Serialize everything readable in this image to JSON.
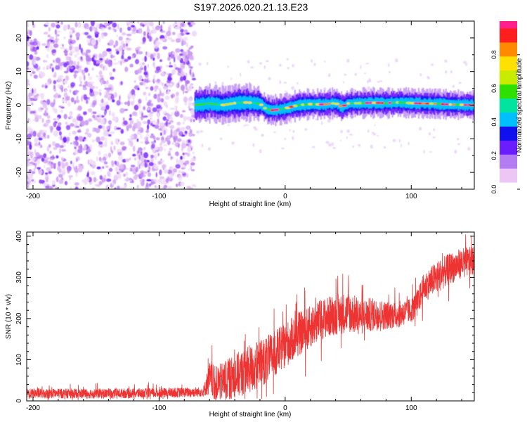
{
  "title": "S197.2026.020.21.13.E23",
  "chart_data": [
    {
      "type": "heatmap",
      "name": "spectrogram",
      "xlabel": "Height of straight line (km)",
      "ylabel": "Frequency (Hz)",
      "xlim": [
        -205,
        150
      ],
      "ylim": [
        -25,
        25
      ],
      "xticks": [
        -200,
        -100,
        0,
        100
      ],
      "yticks": [
        -20,
        -10,
        0,
        10,
        20
      ],
      "noise_region_x": [
        -205,
        -72
      ],
      "signal_region_x": [
        -72,
        150
      ],
      "signal_center_hz": [
        [
          -72,
          0.0
        ],
        [
          -60,
          0.5
        ],
        [
          -50,
          0.0
        ],
        [
          -40,
          0.6
        ],
        [
          -30,
          0.8
        ],
        [
          -20,
          0.4
        ],
        [
          -15,
          -1.2
        ],
        [
          -10,
          -1.5
        ],
        [
          -5,
          -1.3
        ],
        [
          0,
          -1.0
        ],
        [
          10,
          0.0
        ],
        [
          20,
          0.3
        ],
        [
          30,
          0.2
        ],
        [
          40,
          0.6
        ],
        [
          45,
          -0.5
        ],
        [
          50,
          0.5
        ],
        [
          60,
          0.6
        ],
        [
          70,
          0.7
        ],
        [
          80,
          0.6
        ],
        [
          90,
          0.8
        ],
        [
          100,
          0.6
        ],
        [
          110,
          0.5
        ],
        [
          120,
          0.4
        ],
        [
          130,
          0.2
        ],
        [
          140,
          0.1
        ],
        [
          150,
          0.0
        ]
      ],
      "colorbar": {
        "label": "Normalized spectral amplitude",
        "range": [
          0,
          1
        ],
        "ticks": [
          "0.0",
          "0.2",
          "0.4",
          "0.6",
          "0.8"
        ],
        "colors": [
          "#ffffff",
          "#ecc6f4",
          "#b47cf2",
          "#6a1eff",
          "#1010ee",
          "#00bfff",
          "#00e4a0",
          "#2ee000",
          "#c8ec00",
          "#ffe000",
          "#ff8a00",
          "#ff1e1e",
          "#ff1f8a"
        ]
      }
    },
    {
      "type": "line",
      "name": "snr",
      "xlabel": "Height of straight line (km)",
      "ylabel": "SNR (10 * v/v)",
      "xlim": [
        -205,
        150
      ],
      "ylim": [
        0,
        410
      ],
      "xticks": [
        -200,
        -100,
        0,
        100
      ],
      "yticks": [
        0,
        100,
        200,
        300,
        400
      ],
      "color": "#ee3333",
      "baseline_points": [
        [
          -205,
          18
        ],
        [
          -150,
          18
        ],
        [
          -100,
          19
        ],
        [
          -65,
          22
        ],
        [
          -60,
          55
        ],
        [
          -55,
          40
        ],
        [
          -40,
          60
        ],
        [
          -25,
          80
        ],
        [
          -10,
          110
        ],
        [
          0,
          135
        ],
        [
          10,
          160
        ],
        [
          20,
          180
        ],
        [
          30,
          200
        ],
        [
          40,
          210
        ],
        [
          50,
          215
        ],
        [
          60,
          205
        ],
        [
          70,
          210
        ],
        [
          80,
          208
        ],
        [
          90,
          210
        ],
        [
          100,
          220
        ],
        [
          105,
          240
        ],
        [
          110,
          275
        ],
        [
          120,
          300
        ],
        [
          130,
          320
        ],
        [
          140,
          335
        ],
        [
          150,
          340
        ]
      ],
      "noise_amplitude": [
        [
          -205,
          12
        ],
        [
          -65,
          12
        ],
        [
          -60,
          40
        ],
        [
          -30,
          60
        ],
        [
          0,
          55
        ],
        [
          30,
          50
        ],
        [
          50,
          50
        ],
        [
          80,
          35
        ],
        [
          100,
          30
        ],
        [
          120,
          40
        ],
        [
          150,
          35
        ]
      ]
    }
  ]
}
